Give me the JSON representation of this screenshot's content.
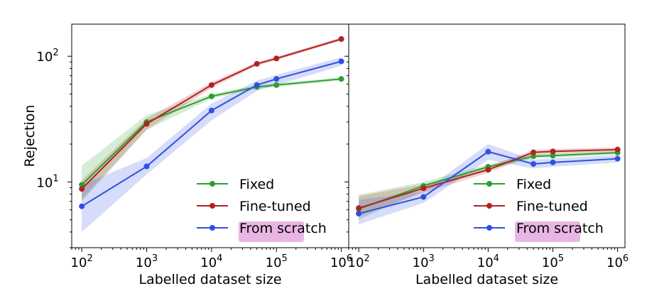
{
  "chart_data": [
    {
      "type": "line",
      "xscale": "log",
      "yscale": "log",
      "xlim": [
        70,
        1300000
      ],
      "ylim": [
        3.0,
        180
      ],
      "xticks": [
        {
          "v": 100,
          "label": "10"
        },
        {
          "v": 1000,
          "label": "10"
        },
        {
          "v": 10000,
          "label": "10"
        },
        {
          "v": 100000,
          "label": "10"
        },
        {
          "v": 1000000,
          "label": "10"
        }
      ],
      "xtick_exponents": [
        "2",
        "3",
        "4",
        "5",
        "6"
      ],
      "yticks": [
        {
          "v": 10,
          "label": "10",
          "exp": "1"
        },
        {
          "v": 100,
          "label": "10",
          "exp": "2"
        }
      ],
      "xlabel": "Labelled dataset size",
      "ylabel": "Rejection",
      "legend": "lower-right",
      "series": [
        {
          "name": "Fixed",
          "color": "#2ca02c",
          "x": [
            100,
            1000,
            10000,
            50000,
            100000,
            1000000
          ],
          "y": [
            9.5,
            30,
            48,
            57,
            59,
            66
          ],
          "lo": [
            7.0,
            26,
            46,
            55,
            57,
            64
          ],
          "hi": [
            13.5,
            34,
            50,
            59,
            61,
            68
          ]
        },
        {
          "name": "Fine-tuned",
          "color": "#b22222",
          "x": [
            100,
            1000,
            10000,
            50000,
            100000,
            1000000
          ],
          "y": [
            8.8,
            29,
            59,
            87,
            96,
            137
          ],
          "lo": [
            7.3,
            26,
            56,
            84,
            93,
            133
          ],
          "hi": [
            10.3,
            32,
            62,
            90,
            99,
            141
          ]
        },
        {
          "name": "From scratch",
          "color": "#3050e0",
          "x": [
            100,
            1000,
            10000,
            50000,
            100000,
            1000000
          ],
          "y": [
            6.4,
            13.3,
            37,
            59,
            66,
            91
          ],
          "lo": [
            4.0,
            11.5,
            31,
            53,
            59,
            84
          ],
          "hi": [
            9.5,
            15.5,
            42,
            64,
            71,
            98
          ]
        }
      ]
    },
    {
      "type": "line",
      "xscale": "log",
      "yscale": "log",
      "xlim": [
        70,
        1300000
      ],
      "ylim": [
        3.0,
        180
      ],
      "xticks": [
        {
          "v": 100,
          "label": "10"
        },
        {
          "v": 1000,
          "label": "10"
        },
        {
          "v": 10000,
          "label": "10"
        },
        {
          "v": 100000,
          "label": "10"
        },
        {
          "v": 1000000,
          "label": "10"
        }
      ],
      "xtick_exponents": [
        "2",
        "3",
        "4",
        "5",
        "6"
      ],
      "xlabel": "Labelled dataset size",
      "ylabel": "",
      "legend": "lower-right",
      "series": [
        {
          "name": "Fixed",
          "color": "#2ca02c",
          "x": [
            100,
            1000,
            10000,
            50000,
            100000,
            1000000
          ],
          "y": [
            6.1,
            9.3,
            13.2,
            16.0,
            16.2,
            17.1
          ],
          "lo": [
            5.0,
            8.5,
            12.5,
            15.4,
            15.6,
            16.5
          ],
          "hi": [
            7.9,
            10.0,
            13.8,
            16.6,
            16.8,
            17.7
          ]
        },
        {
          "name": "Fine-tuned",
          "color": "#b22222",
          "x": [
            100,
            1000,
            10000,
            50000,
            100000,
            1000000
          ],
          "y": [
            6.2,
            8.9,
            12.5,
            17.2,
            17.5,
            18.1
          ],
          "lo": [
            5.3,
            8.2,
            11.8,
            16.4,
            16.7,
            17.4
          ],
          "hi": [
            7.7,
            9.6,
            13.2,
            18.0,
            18.3,
            18.8
          ]
        },
        {
          "name": "From scratch",
          "color": "#3050e0",
          "x": [
            100,
            1000,
            10000,
            50000,
            100000,
            1000000
          ],
          "y": [
            5.6,
            7.6,
            17.4,
            13.9,
            14.3,
            15.3
          ],
          "lo": [
            4.6,
            6.8,
            15.0,
            12.8,
            13.2,
            14.3
          ],
          "hi": [
            7.2,
            8.4,
            20.0,
            15.0,
            15.4,
            16.3
          ]
        }
      ]
    }
  ]
}
